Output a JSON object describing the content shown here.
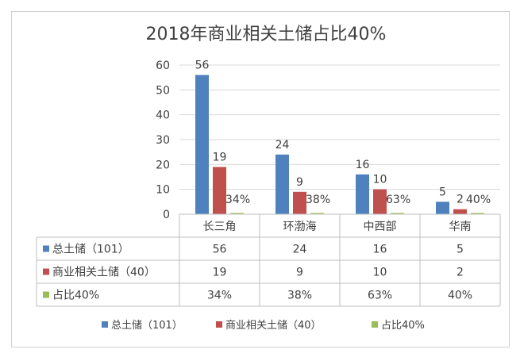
{
  "chart_data": {
    "type": "bar",
    "title": "2018年商业相关土储占比40%",
    "categories": [
      "长三角",
      "环渤海",
      "中西部",
      "华南"
    ],
    "ylim": [
      0,
      60
    ],
    "yticks": [
      0,
      10,
      20,
      30,
      40,
      50,
      60
    ],
    "grid": true,
    "legend_position": "bottom",
    "series": [
      {
        "name": "总土储（101）",
        "color": "#4f81bd",
        "values": [
          56,
          24,
          16,
          5
        ],
        "labels": [
          "56",
          "24",
          "16",
          "5"
        ]
      },
      {
        "name": "商业相关土储（40）",
        "color": "#c0504d",
        "values": [
          19,
          9,
          10,
          2
        ],
        "labels": [
          "19",
          "9",
          "10",
          "2"
        ]
      },
      {
        "name": "占比40%",
        "color": "#9bbb59",
        "values": [
          0.34,
          0.38,
          0.63,
          0.4
        ],
        "labels": [
          "34%",
          "38%",
          "63%",
          "40%"
        ]
      }
    ]
  }
}
